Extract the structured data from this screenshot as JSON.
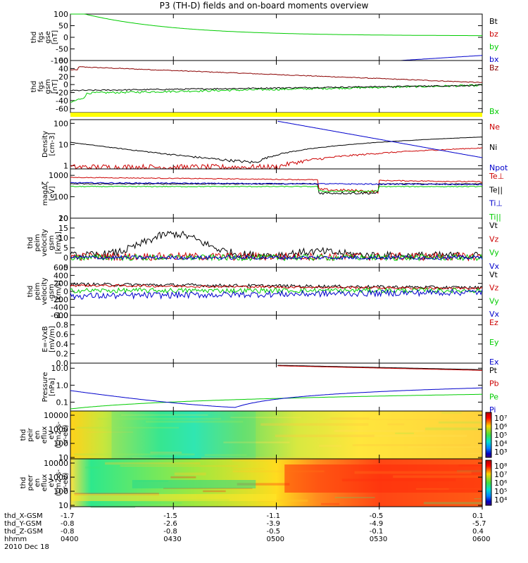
{
  "title": "P3 (TH-D) fields and on-board moments overview",
  "colors": {
    "black": "#000000",
    "red": "#cc0000",
    "green": "#00cc00",
    "blue": "#0000cc",
    "yellow": "#ffff00",
    "darkred": "#8b0000"
  },
  "chart_data": [
    {
      "type": "line",
      "id": "fgs_gse",
      "ylabel": [
        "thd",
        "fgs",
        "gse",
        "[nT]"
      ],
      "ylim": [
        -100,
        100
      ],
      "yticks": [
        "100",
        "50",
        "0",
        "-50",
        "-100"
      ],
      "series": [
        {
          "name": "Bt",
          "color": "#000000"
        },
        {
          "name": "bz",
          "color": "#cc0000"
        },
        {
          "name": "by",
          "color": "#00cc00"
        },
        {
          "name": "bx",
          "color": "#0000cc"
        }
      ]
    },
    {
      "type": "line",
      "id": "fgs_gsm",
      "ylabel": [
        "thd",
        "fgs",
        "gsm",
        "[nT]"
      ],
      "ylim": [
        -70,
        60
      ],
      "yticks": [
        "60",
        "40",
        "20",
        "0",
        "-20",
        "-40",
        "-60"
      ],
      "series": [
        {
          "name": "Bz",
          "color": "#8b0000"
        },
        {
          "name": "Bx",
          "color": "#00cc00"
        }
      ]
    },
    {
      "type": "bar",
      "id": "mode_bar",
      "color": "#ffff00"
    },
    {
      "type": "line",
      "id": "density",
      "ylabel": [
        "Density",
        "[cm-3]"
      ],
      "yscale": "log",
      "ylim": [
        0.7,
        150
      ],
      "yticks": [
        "100",
        "10",
        "1"
      ],
      "series": [
        {
          "name": "Ne",
          "color": "#cc0000"
        },
        {
          "name": "Ni",
          "color": "#000000"
        },
        {
          "name": "Npot",
          "color": "#0000cc"
        }
      ]
    },
    {
      "type": "line",
      "id": "temperature",
      "ylabel": [
        "magΔζ",
        "[eV]"
      ],
      "yscale": "log",
      "ylim": [
        10,
        2000
      ],
      "yticks": [
        "1000",
        "100",
        "10"
      ],
      "series": [
        {
          "name": "Te⊥",
          "color": "#cc0000"
        },
        {
          "name": "Te||",
          "color": "#000000"
        },
        {
          "name": "Ti⊥",
          "color": "#0000cc"
        },
        {
          "name": "Ti||",
          "color": "#00cc00"
        }
      ]
    },
    {
      "type": "line",
      "id": "velocity_gsm",
      "ylabel": [
        "thd",
        "peim",
        "velocity",
        "gsm",
        "[km/s]"
      ],
      "ylim": [
        -5,
        20
      ],
      "yticks": [
        "20",
        "15",
        "10",
        "5",
        "0",
        "-5"
      ],
      "series": [
        {
          "name": "Vt",
          "color": "#000000"
        },
        {
          "name": "Vz",
          "color": "#cc0000"
        },
        {
          "name": "Vy",
          "color": "#00cc00"
        },
        {
          "name": "Vx",
          "color": "#0000cc"
        }
      ]
    },
    {
      "type": "line",
      "id": "velocity_gsm2",
      "ylabel": [
        "thd",
        "peim",
        "velocity",
        "gsm",
        "[km/s]"
      ],
      "ylim": [
        -600,
        600
      ],
      "yticks": [
        "600",
        "400",
        "200",
        "0",
        "-200",
        "-400",
        "-600"
      ],
      "series": [
        {
          "name": "Vt",
          "color": "#000000"
        },
        {
          "name": "Vz",
          "color": "#cc0000"
        },
        {
          "name": "Vy",
          "color": "#00cc00"
        },
        {
          "name": "Vx",
          "color": "#0000cc"
        }
      ]
    },
    {
      "type": "line",
      "id": "efield",
      "ylabel": [
        "E=-VxB",
        "[mV/m]"
      ],
      "ylim": [
        0,
        1
      ],
      "yticks": [
        "1.0",
        "0.8",
        "0.6",
        "0.4",
        "0.2",
        "0.0"
      ],
      "series": [
        {
          "name": "Ez",
          "color": "#cc0000"
        },
        {
          "name": "Ey",
          "color": "#00cc00"
        },
        {
          "name": "Ex",
          "color": "#0000cc"
        }
      ]
    },
    {
      "type": "line",
      "id": "pressure",
      "ylabel": [
        "Pressure",
        "[nPa]"
      ],
      "yscale": "log",
      "ylim": [
        0.03,
        20
      ],
      "yticks": [
        "10.0",
        "1.0",
        "0.1"
      ],
      "series": [
        {
          "name": "Pt",
          "color": "#000000"
        },
        {
          "name": "Pb",
          "color": "#cc0000"
        },
        {
          "name": "Pe",
          "color": "#00cc00"
        },
        {
          "name": "Pi",
          "color": "#0000cc"
        }
      ]
    },
    {
      "type": "heatmap",
      "id": "peir_spec",
      "ylabel": [
        "thd",
        "peir",
        "en",
        "eflux",
        "eV",
        "(cm2-s-",
        "sr-eV)"
      ],
      "yscale": "log",
      "ylim": [
        8,
        20000
      ],
      "yticks": [
        "10000",
        "1000",
        "100",
        "10"
      ],
      "cbar_labels": [
        "10⁷",
        "10⁶",
        "10⁵",
        "10⁴",
        "10³"
      ]
    },
    {
      "type": "heatmap",
      "id": "peer_spec",
      "ylabel": [
        "thd",
        "peer",
        "en",
        "eflux",
        "eV",
        "(cm2-s-",
        "sr-eV)"
      ],
      "yscale": "log",
      "ylim": [
        8,
        20000
      ],
      "yticks": [
        "10000",
        "1000",
        "100",
        "10"
      ],
      "cbar_labels": [
        "10⁸",
        "10⁷",
        "10⁶",
        "10⁵",
        "10⁴"
      ]
    }
  ],
  "ephemeris": {
    "rows": [
      {
        "label": "thd_X-GSM",
        "values": [
          "-1.7",
          "-1.5",
          "-1.1",
          "-0.5",
          "0.1"
        ]
      },
      {
        "label": "thd_Y-GSM",
        "values": [
          "-0.8",
          "-2.6",
          "-3.9",
          "-4.9",
          "-5.7"
        ]
      },
      {
        "label": "thd_Z-GSM",
        "values": [
          "-0.8",
          "-0.8",
          "-0.5",
          "-0.1",
          "0.4"
        ]
      },
      {
        "label": "hhmm",
        "values": [
          "0400",
          "0430",
          "0500",
          "0530",
          "0600"
        ]
      }
    ],
    "date": "2010 Dec 18"
  }
}
